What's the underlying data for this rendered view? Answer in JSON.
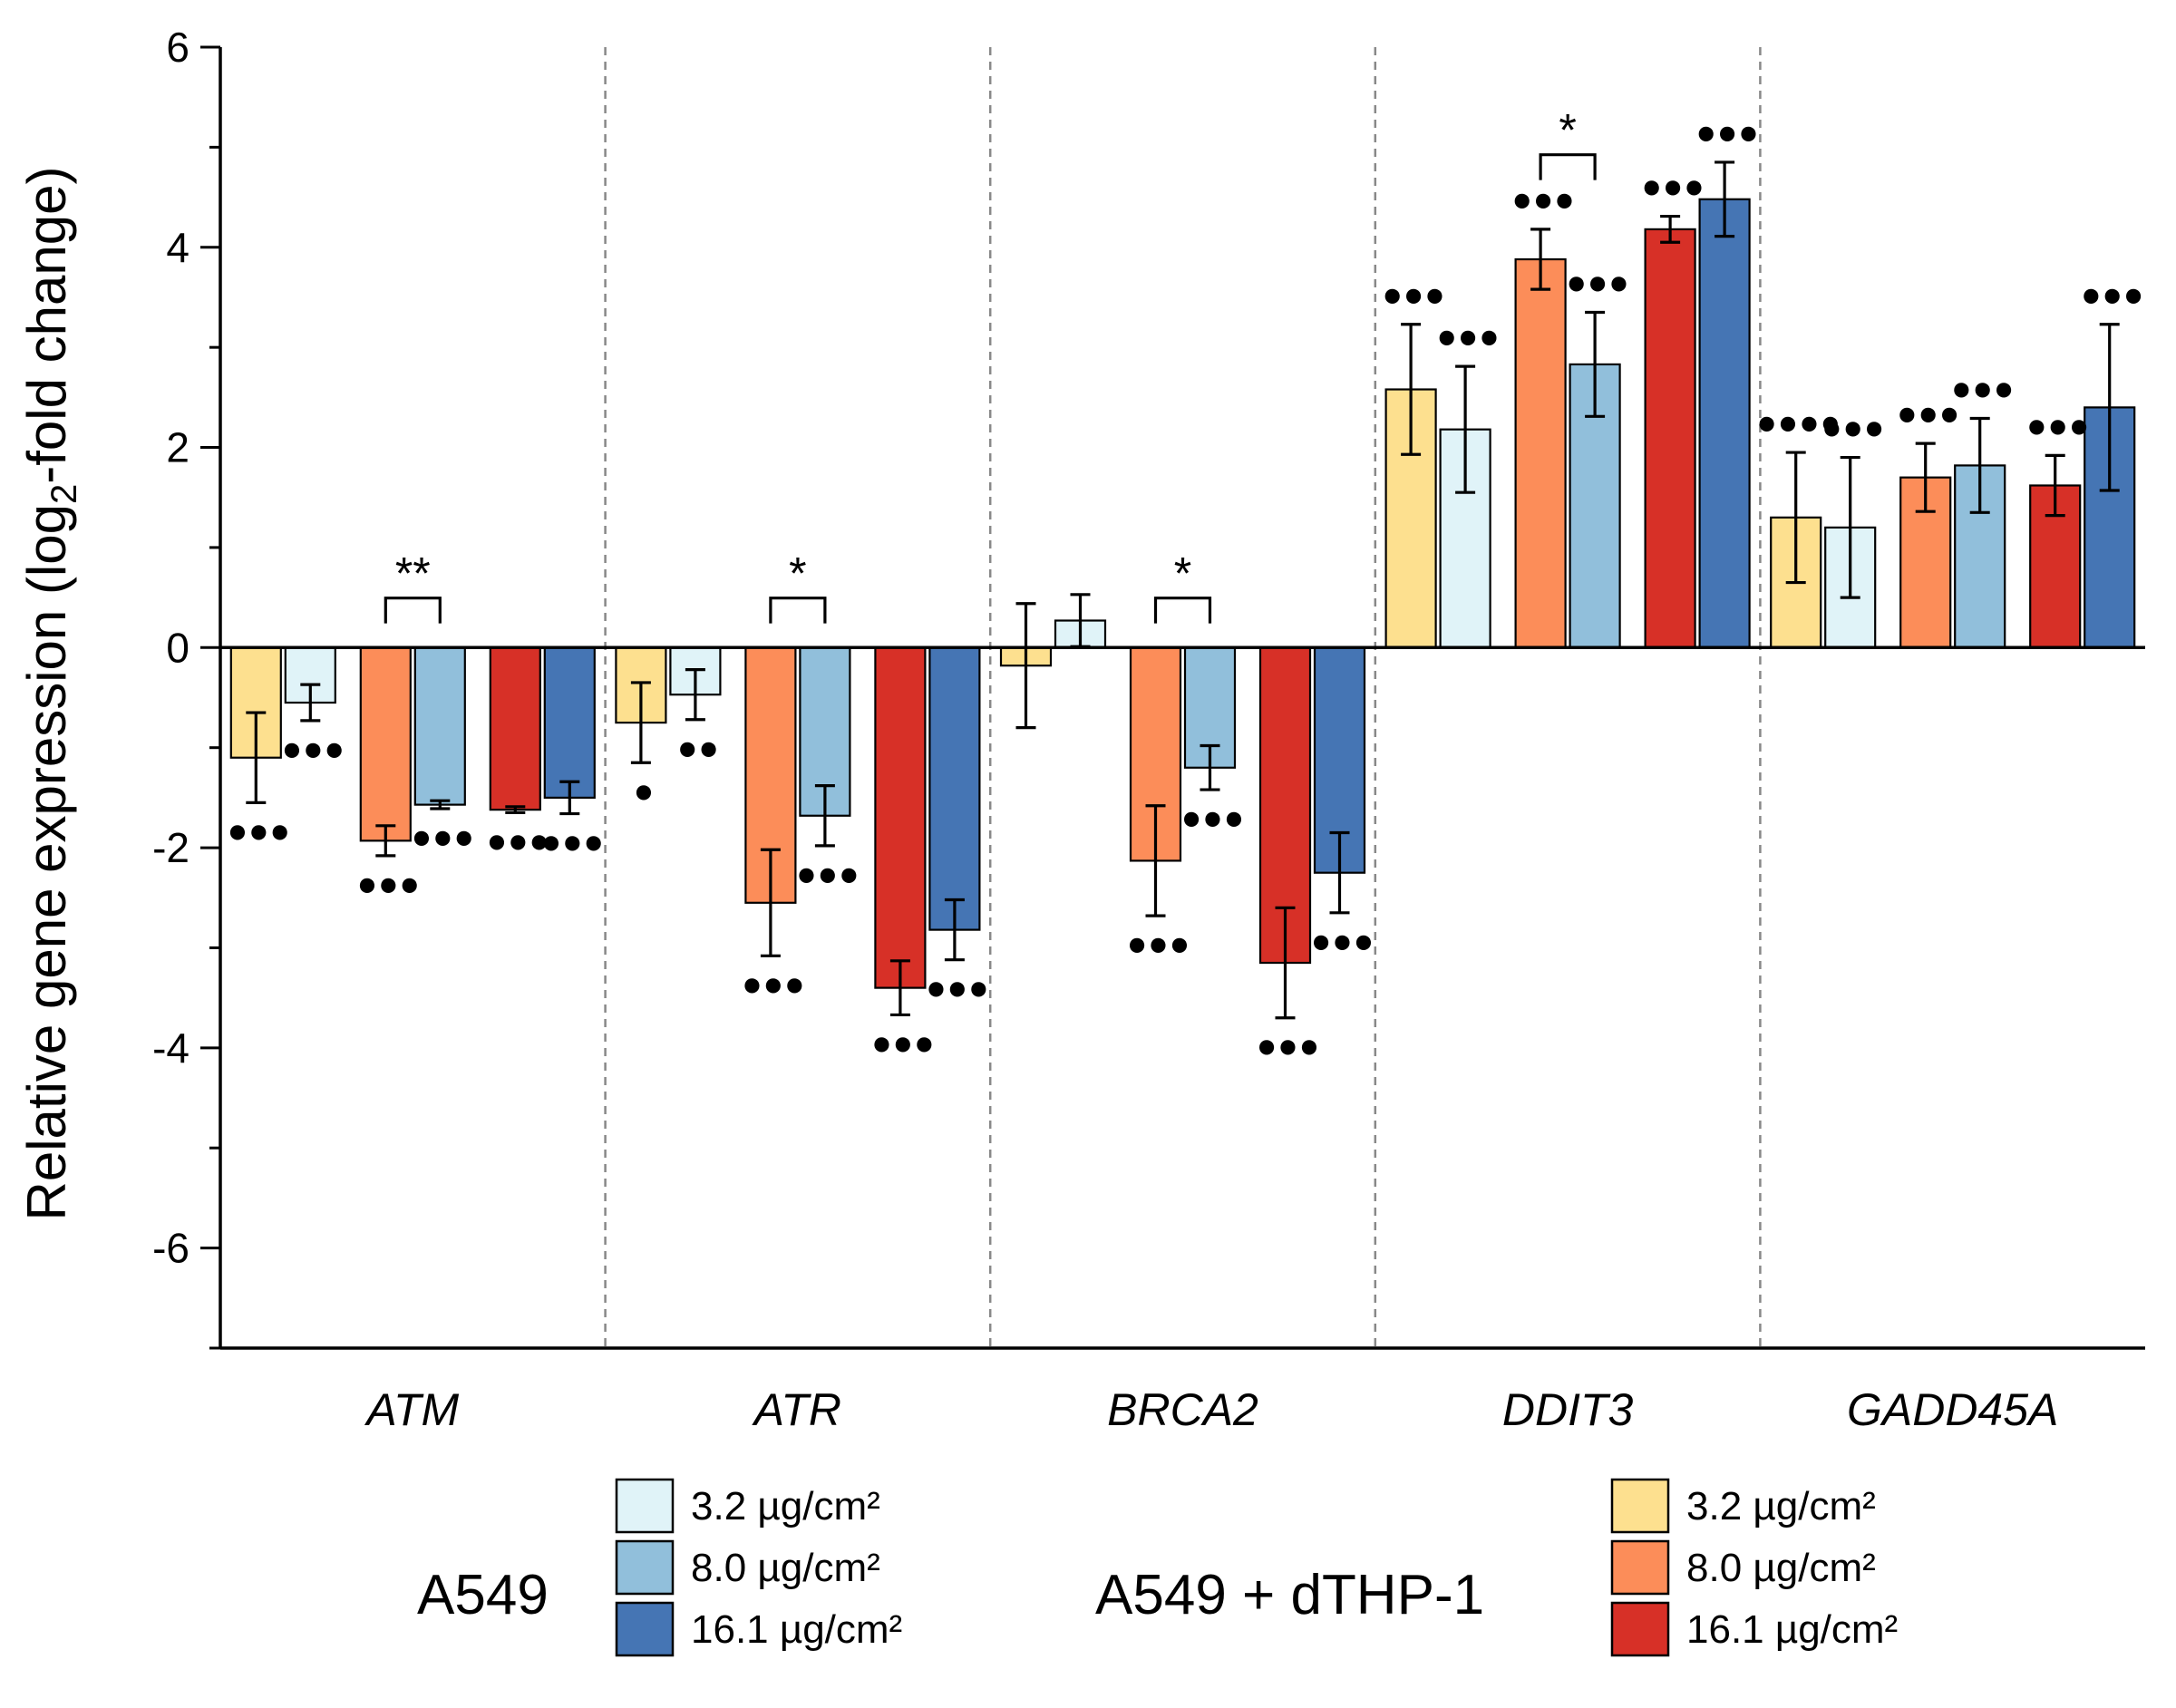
{
  "chart_data": {
    "type": "bar",
    "title": "",
    "xlabel": "",
    "ylabel": {
      "prefix": "Relative gene expression (log",
      "subscript": "2",
      "suffix": "-fold change)"
    },
    "ylim": [
      -7,
      6
    ],
    "yticks": [
      6,
      4,
      2,
      0,
      -2,
      -4,
      -6
    ],
    "ytick_labels": [
      "6",
      "4",
      "2",
      "0",
      "-2",
      "-4",
      "-6"
    ],
    "grid": false,
    "categories": [
      "ATM",
      "ATR",
      "BRCA2",
      "DDIT3",
      "GADD45A"
    ],
    "series": [
      {
        "name": "A549 + dTHP-1 3.2 µg/cm²",
        "group": "A549 + dTHP-1",
        "dose": "3.2 µg/cm²",
        "color": "#FDE08F",
        "values": [
          -1.1,
          -0.75,
          -0.18,
          2.58,
          1.3
        ],
        "errors": [
          0.45,
          0.4,
          0.62,
          0.65,
          0.65
        ],
        "marks": [
          "•••",
          "•",
          "",
          "•••",
          "••••"
        ],
        "mark_side": [
          "below",
          "below",
          "",
          "above",
          "above"
        ]
      },
      {
        "name": "A549 3.2 µg/cm²",
        "group": "A549",
        "dose": "3.2 µg/cm²",
        "color": "#E0F3F8",
        "values": [
          -0.55,
          -0.47,
          0.27,
          2.18,
          1.2
        ],
        "errors": [
          0.18,
          0.25,
          0.26,
          0.63,
          0.7
        ],
        "marks": [
          "•••",
          "••",
          "",
          "•••",
          "•••"
        ],
        "mark_side": [
          "below",
          "below",
          "",
          "above",
          "above"
        ]
      },
      {
        "name": "A549 + dTHP-1 8.0 µg/cm²",
        "group": "A549 + dTHP-1",
        "dose": "8.0 µg/cm²",
        "color": "#FC8D59",
        "values": [
          -1.93,
          -2.55,
          -2.13,
          3.88,
          1.7
        ],
        "errors": [
          0.15,
          0.53,
          0.55,
          0.3,
          0.34
        ],
        "marks": [
          "•••",
          "•••",
          "•••",
          "•••",
          "•••"
        ],
        "mark_side": [
          "below",
          "below",
          "below",
          "above",
          "above"
        ]
      },
      {
        "name": "A549 8.0 µg/cm²",
        "group": "A549",
        "dose": "8.0 µg/cm²",
        "color": "#91BFDB",
        "values": [
          -1.57,
          -1.68,
          -1.2,
          2.83,
          1.82
        ],
        "errors": [
          0.04,
          0.3,
          0.22,
          0.52,
          0.47
        ],
        "marks": [
          "•••",
          "•••",
          "•••",
          "•••",
          "•••"
        ],
        "mark_side": [
          "below",
          "below",
          "below",
          "above",
          "above"
        ]
      },
      {
        "name": "A549 + dTHP-1 16.1 µg/cm²",
        "group": "A549 + dTHP-1",
        "dose": "16.1 µg/cm²",
        "color": "#D73027",
        "values": [
          -1.62,
          -3.4,
          -3.15,
          4.18,
          1.62
        ],
        "errors": [
          0.03,
          0.27,
          0.55,
          0.13,
          0.3
        ],
        "marks": [
          "•••",
          "•••",
          "•••",
          "•••",
          "•••"
        ],
        "mark_side": [
          "below",
          "below",
          "below",
          "above",
          "above"
        ]
      },
      {
        "name": "A549 16.1 µg/cm²",
        "group": "A549",
        "dose": "16.1 µg/cm²",
        "color": "#4575B4",
        "values": [
          -1.5,
          -2.82,
          -2.25,
          4.48,
          2.4
        ],
        "errors": [
          0.16,
          0.3,
          0.4,
          0.37,
          0.83
        ],
        "marks": [
          "•••",
          "•••",
          "•••",
          "•••",
          "•••"
        ],
        "mark_side": [
          "below",
          "below",
          "below",
          "above",
          "above"
        ]
      }
    ],
    "significance": [
      {
        "category": "ATM",
        "label": "**",
        "bars": [
          2,
          3
        ],
        "y": 0.35
      },
      {
        "category": "ATR",
        "label": "*",
        "bars": [
          2,
          3
        ],
        "y": 0.35
      },
      {
        "category": "BRCA2",
        "label": "*",
        "bars": [
          2,
          3
        ],
        "y": 0.35
      },
      {
        "category": "DDIT3",
        "label": "*",
        "bars": [
          2,
          3
        ],
        "y": 4.78
      }
    ],
    "legend": {
      "placement": "bottom",
      "groups": [
        {
          "label": "A549",
          "series": [
            1,
            3,
            5
          ],
          "entries": [
            "3.2 µg/cm²",
            "8.0 µg/cm²",
            "16.1 µg/cm²"
          ]
        },
        {
          "label": "A549 + dTHP-1",
          "series": [
            0,
            2,
            4
          ],
          "entries": [
            "3.2 µg/cm²",
            "8.0 µg/cm²",
            "16.1 µg/cm²"
          ]
        }
      ]
    }
  }
}
